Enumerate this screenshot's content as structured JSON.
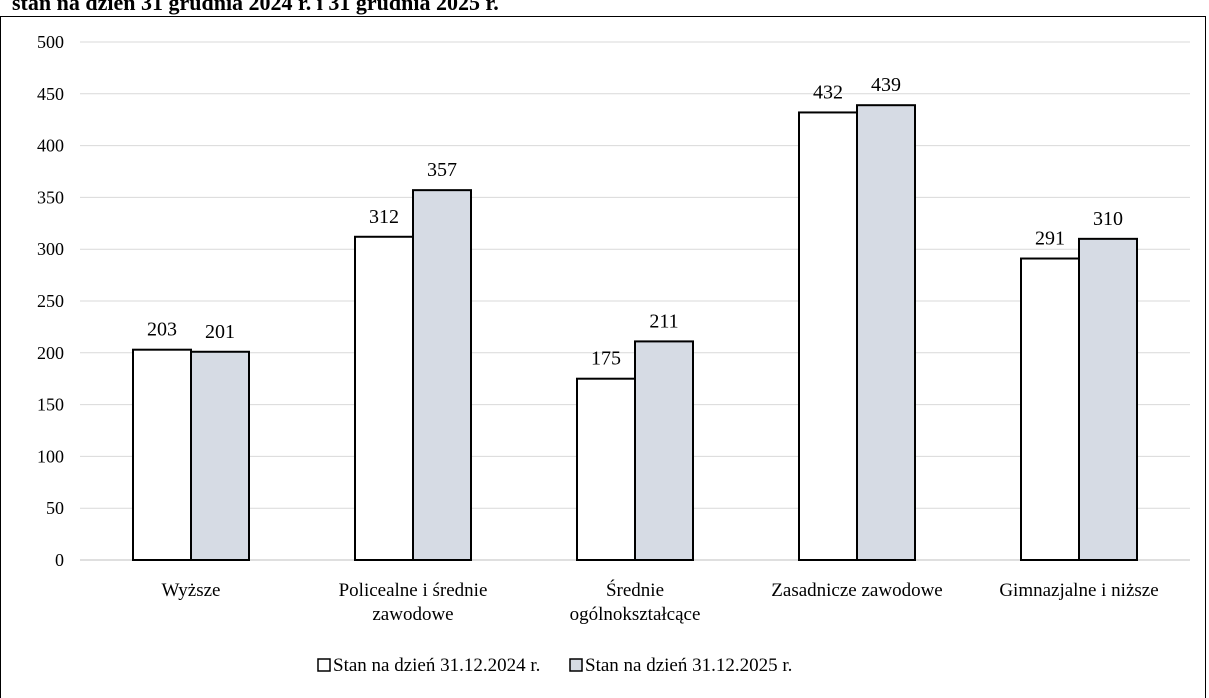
{
  "title": "stan na dzień 31 grudnia 2024 r. i 31 grudnia 2025 r.",
  "colors": {
    "series1": "#ffffff",
    "series2": "#d6dbe4",
    "grid": "#d9d9d9",
    "stroke": "#000000"
  },
  "chart_data": {
    "type": "bar",
    "title": "stan na dzień 31 grudnia 2024 r. i 31 grudnia 2025 r.",
    "categories": [
      [
        "Wyższe"
      ],
      [
        "Policealne i średnie",
        "zawodowe"
      ],
      [
        "Średnie",
        "ogólnokształcące"
      ],
      [
        "Zasadnicze zawodowe"
      ],
      [
        "Gimnazjalne i niższe"
      ]
    ],
    "series": [
      {
        "name": "Stan na dzień 31.12.2024 r.",
        "values": [
          203,
          312,
          175,
          432,
          291
        ]
      },
      {
        "name": "Stan na dzień 31.12.2025 r.",
        "values": [
          201,
          357,
          211,
          439,
          310
        ]
      }
    ],
    "ylim": [
      0,
      500
    ],
    "yticks": [
      0,
      50,
      100,
      150,
      200,
      250,
      300,
      350,
      400,
      450,
      500
    ],
    "grid": true,
    "legend": "bottom",
    "data_labels": true
  }
}
